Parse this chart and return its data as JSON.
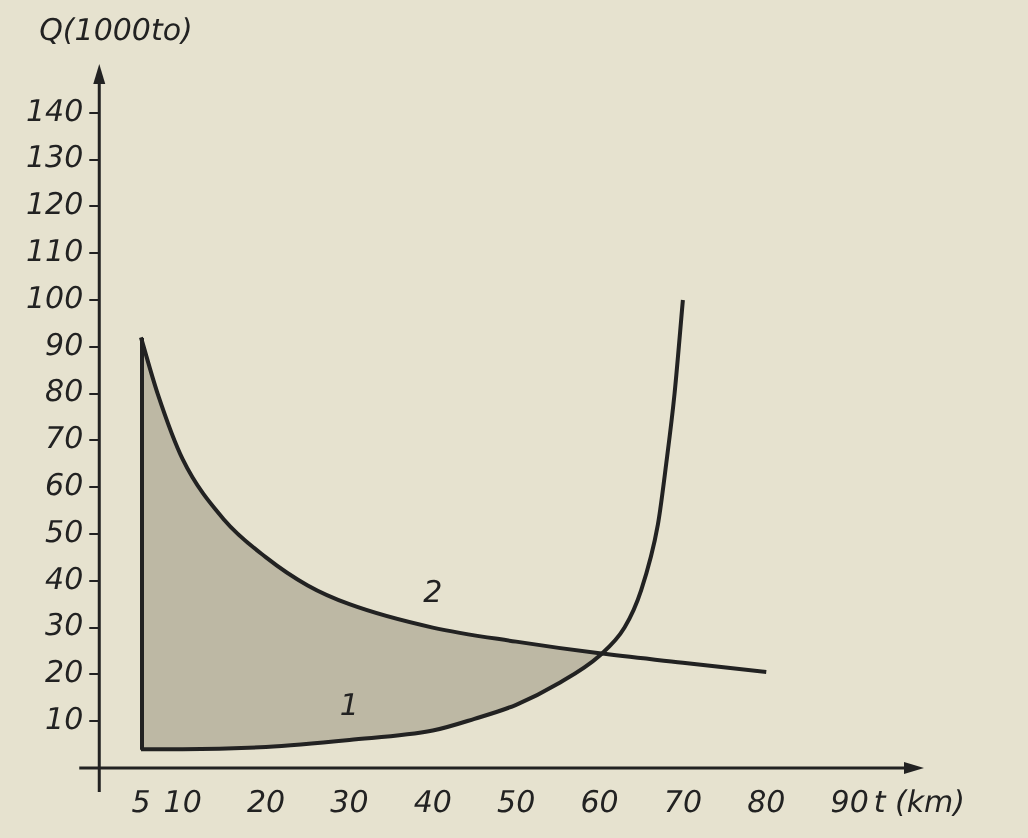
{
  "chart_data": {
    "type": "line",
    "xlabel": "t (km)",
    "ylabel": "Q(1000to)",
    "xlim": [
      0,
      97
    ],
    "ylim": [
      0,
      147
    ],
    "xticks": [
      5,
      10,
      20,
      30,
      40,
      50,
      60,
      70,
      80,
      90
    ],
    "yticks": [
      10,
      20,
      30,
      40,
      50,
      60,
      70,
      80,
      90,
      100,
      110,
      120,
      130,
      140
    ],
    "grid": false,
    "legend": false,
    "marker": "none",
    "line_style": "solid",
    "series": [
      {
        "name": "1",
        "color": "#222222",
        "x": [
          5,
          10,
          20,
          30,
          40,
          45,
          50,
          55,
          60,
          63,
          65,
          67,
          68,
          69,
          70
        ],
        "values": [
          4,
          4,
          4.5,
          6,
          8,
          10.5,
          13.5,
          18,
          24,
          30,
          38,
          52,
          65,
          80,
          100
        ]
      },
      {
        "name": "2",
        "color": "#222222",
        "x": [
          5,
          7,
          10,
          15,
          20,
          25,
          30,
          40,
          50,
          60,
          70,
          80
        ],
        "values": [
          92,
          80,
          66,
          53,
          45,
          39,
          35,
          30,
          27,
          24.5,
          22.5,
          20.5
        ]
      }
    ]
  }
}
